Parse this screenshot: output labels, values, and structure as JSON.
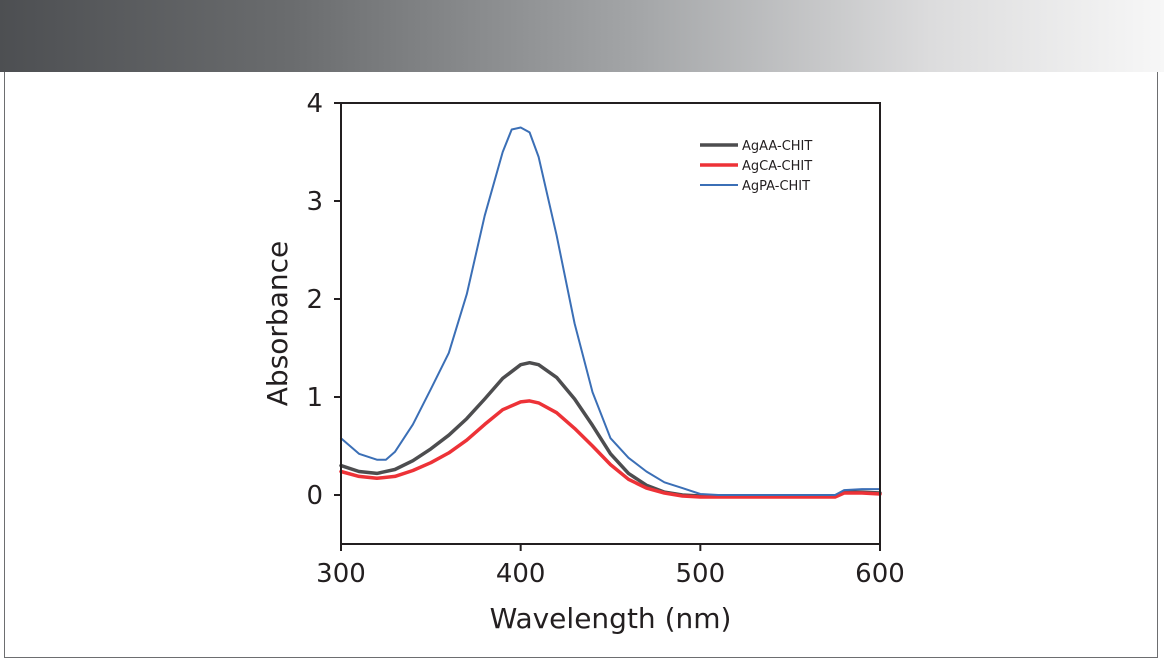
{
  "chart_data": {
    "type": "line",
    "title": "",
    "xlabel": "Wavelength (nm)",
    "ylabel": "Absorbance",
    "xlim": [
      300,
      600
    ],
    "ylim": [
      -0.5,
      4
    ],
    "xticks": [
      300,
      400,
      500,
      600
    ],
    "yticks": [
      0,
      1,
      2,
      3,
      4
    ],
    "grid": false,
    "legend_position": "top-right",
    "series": [
      {
        "name": "AgAA-CHIT",
        "color": "#4d4d4f",
        "x": [
          300,
          310,
          320,
          330,
          340,
          350,
          360,
          370,
          380,
          390,
          400,
          405,
          410,
          420,
          430,
          440,
          450,
          460,
          470,
          480,
          490,
          500,
          510,
          520,
          540,
          560,
          575,
          580,
          590,
          600
        ],
        "y": [
          0.3,
          0.24,
          0.22,
          0.26,
          0.35,
          0.47,
          0.61,
          0.78,
          0.98,
          1.19,
          1.33,
          1.35,
          1.33,
          1.2,
          0.98,
          0.71,
          0.42,
          0.22,
          0.1,
          0.03,
          0.0,
          -0.01,
          -0.01,
          -0.01,
          -0.01,
          -0.01,
          -0.01,
          0.03,
          0.03,
          0.02
        ]
      },
      {
        "name": "AgCA-CHIT",
        "color": "#ed3237",
        "x": [
          300,
          310,
          320,
          330,
          340,
          350,
          360,
          370,
          380,
          390,
          400,
          405,
          410,
          420,
          430,
          440,
          450,
          460,
          470,
          480,
          490,
          500,
          510,
          520,
          540,
          560,
          575,
          580,
          590,
          600
        ],
        "y": [
          0.24,
          0.19,
          0.17,
          0.19,
          0.25,
          0.33,
          0.43,
          0.56,
          0.72,
          0.87,
          0.95,
          0.96,
          0.94,
          0.84,
          0.68,
          0.5,
          0.31,
          0.16,
          0.07,
          0.02,
          -0.01,
          -0.02,
          -0.02,
          -0.02,
          -0.02,
          -0.02,
          -0.02,
          0.02,
          0.02,
          0.01
        ]
      },
      {
        "name": "AgPA-CHIT",
        "color": "#3b6fb6",
        "x": [
          300,
          310,
          320,
          325,
          330,
          340,
          350,
          360,
          370,
          380,
          390,
          395,
          400,
          405,
          410,
          420,
          430,
          440,
          450,
          460,
          470,
          480,
          490,
          500,
          510,
          520,
          540,
          560,
          575,
          580,
          590,
          600
        ],
        "y": [
          0.58,
          0.42,
          0.36,
          0.36,
          0.44,
          0.72,
          1.08,
          1.45,
          2.05,
          2.85,
          3.5,
          3.73,
          3.75,
          3.7,
          3.45,
          2.65,
          1.75,
          1.05,
          0.58,
          0.38,
          0.24,
          0.13,
          0.07,
          0.01,
          0.0,
          0.0,
          0.0,
          0.0,
          0.0,
          0.05,
          0.06,
          0.06
        ]
      }
    ]
  }
}
